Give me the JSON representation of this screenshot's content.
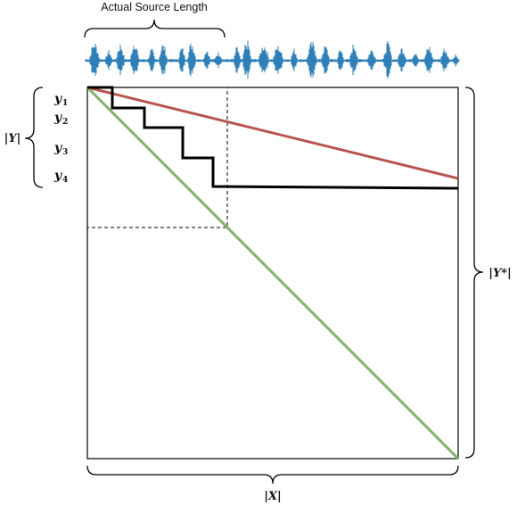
{
  "caption": {
    "top": "Actual Source Length"
  },
  "labels": {
    "y_rows": [
      {
        "base": "y",
        "sub": "1"
      },
      {
        "base": "y",
        "sub": "2"
      },
      {
        "base": "y",
        "sub": "3"
      },
      {
        "base": "y",
        "sub": "4"
      }
    ],
    "left_brace": "|Y|",
    "right_brace": "|Y*|",
    "bottom_brace": "|X|"
  },
  "colors": {
    "waveform": "#2f7fb8",
    "red_line": "#b85450",
    "green_line": "#82b366",
    "path": "#000000",
    "frame": "#000000"
  }
}
